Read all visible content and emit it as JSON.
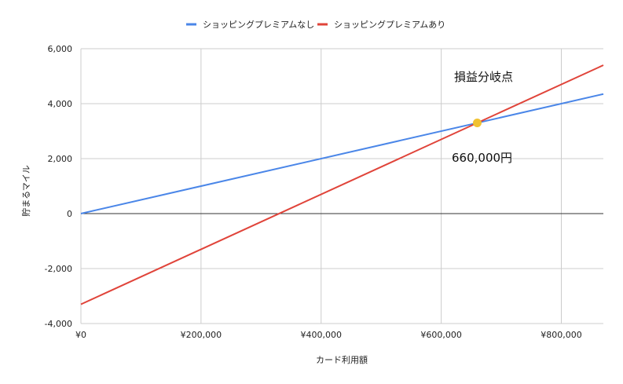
{
  "chart_data": {
    "type": "line",
    "title": "",
    "xlabel": "カード利用額",
    "ylabel": "貯まるマイル",
    "xlim": [
      0,
      870000
    ],
    "ylim": [
      -4000,
      6000
    ],
    "grid": true,
    "legend_position": "top",
    "x_ticks": [
      {
        "value": 0,
        "label": "¥0"
      },
      {
        "value": 200000,
        "label": "¥200,000"
      },
      {
        "value": 400000,
        "label": "¥400,000"
      },
      {
        "value": 600000,
        "label": "¥600,000"
      },
      {
        "value": 800000,
        "label": "¥800,000"
      }
    ],
    "y_ticks": [
      {
        "value": -4000,
        "label": "-4,000"
      },
      {
        "value": -2000,
        "label": "-2,000"
      },
      {
        "value": 0,
        "label": "0"
      },
      {
        "value": 2000,
        "label": "2,000"
      },
      {
        "value": 4000,
        "label": "4,000"
      },
      {
        "value": 6000,
        "label": "6,000"
      }
    ],
    "series": [
      {
        "name": "ショッピングプレミアムなし",
        "color": "#4a86e8",
        "x": [
          0,
          870000
        ],
        "y": [
          0,
          4350
        ]
      },
      {
        "name": "ショッピングプレミアムあり",
        "color": "#e0443a",
        "x": [
          0,
          870000
        ],
        "y": [
          -3300,
          5400
        ]
      }
    ],
    "marker": {
      "x": 660000,
      "y": 3300,
      "color": "#f1c232"
    },
    "annotations": {
      "breakeven_title": "損益分岐点",
      "breakeven_value": "660,000円"
    }
  }
}
